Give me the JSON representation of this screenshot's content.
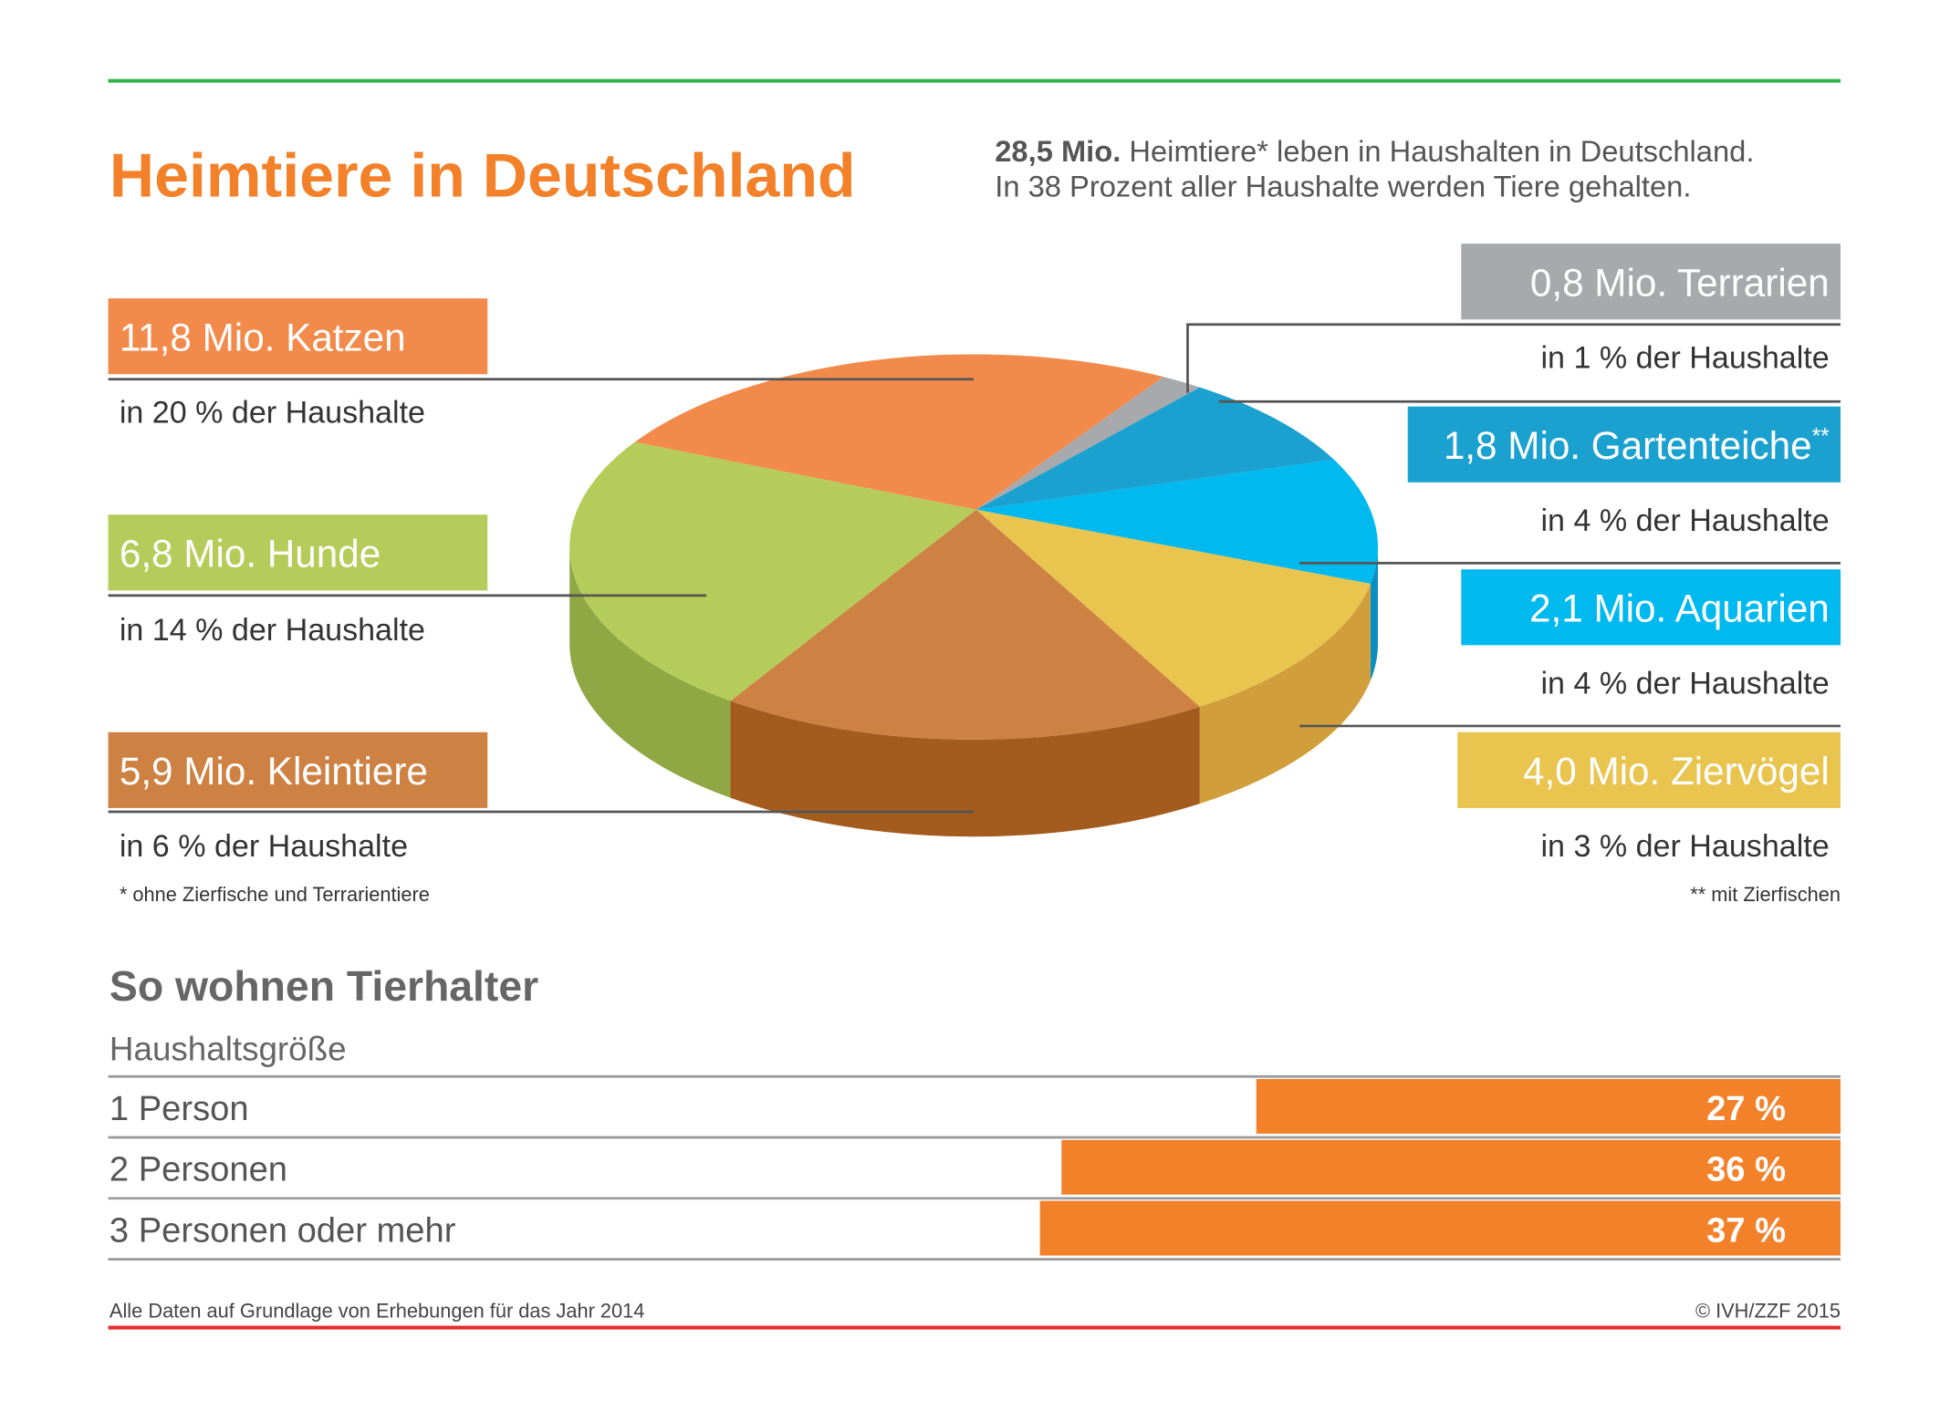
{
  "header": {
    "title": "Heimtiere in Deutschland",
    "intro_bold": "28,5 Mio.",
    "intro_line1": " Heimtiere* leben in Haushalten in Deutschland.",
    "intro_line2": "In 38 Prozent aller Haushalte werden Tiere gehalten."
  },
  "colors": {
    "accent": "#f28129",
    "top_rule": "#2fb24a",
    "bottom_rule": "#e42d2d"
  },
  "chart_data": [
    {
      "type": "pie",
      "title": "Heimtiere in Deutschland",
      "unit": "Mio.",
      "slices": [
        {
          "name": "Katzen",
          "label": "11,8 Mio. Katzen",
          "value": 11.8,
          "households": "in 20 % der Haushalte",
          "color": "#f28a4b"
        },
        {
          "name": "Terrarien",
          "label": "0,8 Mio. Terrarien",
          "value": 0.8,
          "households": "in 1 % der Haushalte",
          "color": "#a7a9ac"
        },
        {
          "name": "Gartenteiche",
          "label": "1,8 Mio. Gartenteiche",
          "sup": "**",
          "value": 1.8,
          "households": "in 4 % der Haushalte",
          "color": "#1ba1cf"
        },
        {
          "name": "Aquarien",
          "label": "2,1 Mio. Aquarien",
          "value": 2.1,
          "households": "in 4 % der Haushalte",
          "color": "#00b9ef"
        },
        {
          "name": "Ziervögel",
          "label": "4,0 Mio. Ziervögel",
          "value": 4.0,
          "households": "in 3 % der Haushalte",
          "color": "#e9c44f"
        },
        {
          "name": "Kleintiere",
          "label": "5,9 Mio. Kleintiere",
          "value": 5.9,
          "households": "in 6 % der Haushalte",
          "color": "#cd8143"
        },
        {
          "name": "Hunde",
          "label": "6,8 Mio. Hunde",
          "value": 6.8,
          "households": "in 14 % der Haushalte",
          "color": "#b6cc5a"
        }
      ],
      "footnotes": [
        "* ohne Zierfische und Terrarientiere",
        "** mit Zierfischen"
      ]
    },
    {
      "type": "bar",
      "title": "So wohnen Tierhalter",
      "header": "Haushaltsgröße",
      "categories": [
        "1 Person",
        "2 Personen",
        "3 Personen oder mehr"
      ],
      "values": [
        27,
        36,
        37
      ],
      "value_labels": [
        "27 %",
        "36 %",
        "37 %"
      ],
      "unit": "%",
      "color": "#f28129"
    }
  ],
  "footer": {
    "source": "Alle Daten auf Grundlage von Erhebungen für das Jahr 2014",
    "copyright": "© IVH/ZZF 2015"
  }
}
